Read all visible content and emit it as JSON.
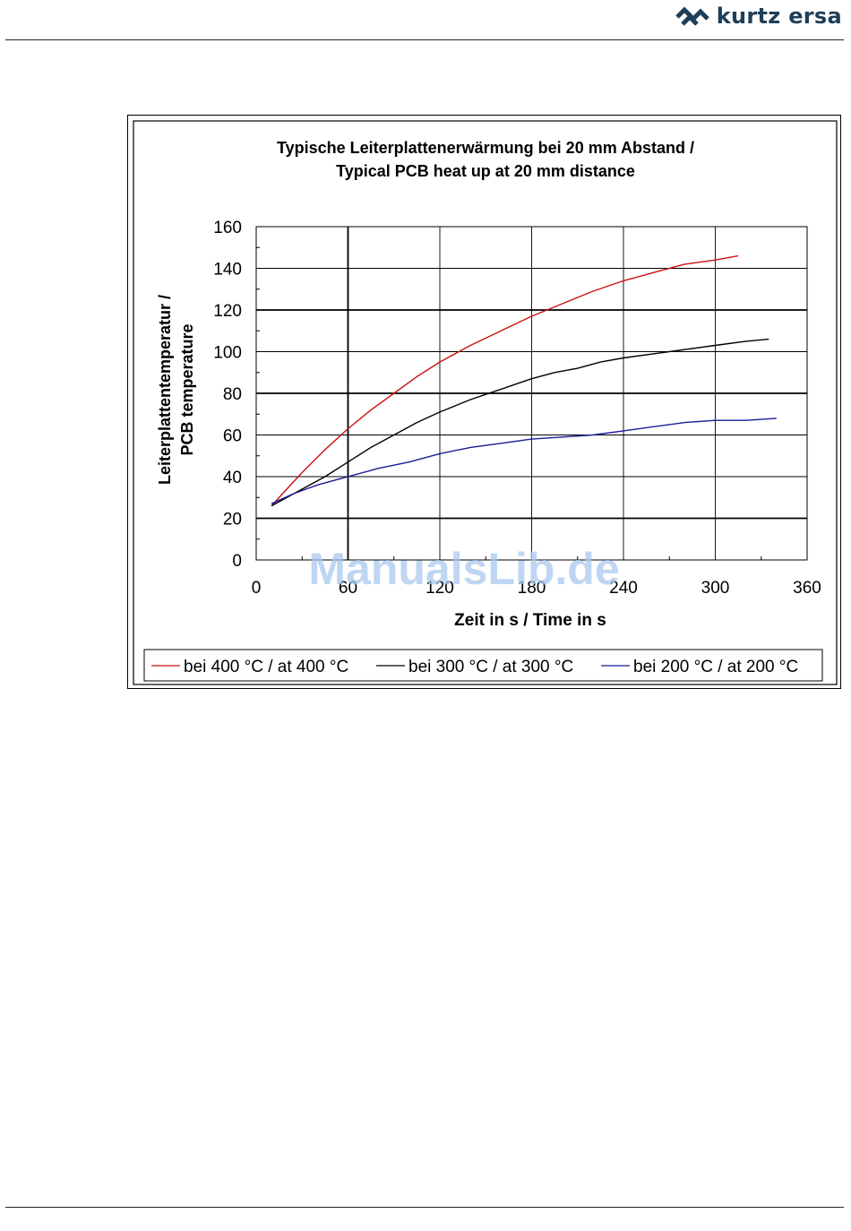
{
  "header": {
    "logo_text": "kurtz ersa",
    "logo_icon": "kurtz-ersa-logo-mark",
    "brand_color": "#1f3e57"
  },
  "chart_data": {
    "type": "line",
    "title_line1": "Typische Leiterplattenerwärmung bei 20 mm Abstand /",
    "title_line2": "Typical PCB heat up at 20 mm distance",
    "xlabel": "Zeit in s / Time in s",
    "ylabel_line1": "Leiterplattentemperatur /",
    "ylabel_line2": "PCB temperature",
    "xlim": [
      0,
      360
    ],
    "ylim": [
      0,
      160
    ],
    "x_ticks": [
      "0",
      "60",
      "120",
      "180",
      "240",
      "300",
      "360"
    ],
    "y_ticks": [
      "0",
      "20",
      "40",
      "60",
      "80",
      "100",
      "120",
      "140",
      "160"
    ],
    "grid": true,
    "legend_position": "bottom",
    "watermark": "ManualsLib.de",
    "series": [
      {
        "name": "bei 400 °C / at 400 °C",
        "color": "#cc1111",
        "points": [
          [
            10,
            26
          ],
          [
            20,
            34
          ],
          [
            30,
            42
          ],
          [
            45,
            53
          ],
          [
            60,
            63
          ],
          [
            75,
            72
          ],
          [
            90,
            80
          ],
          [
            105,
            88
          ],
          [
            120,
            95
          ],
          [
            140,
            103
          ],
          [
            160,
            110
          ],
          [
            180,
            117
          ],
          [
            200,
            123
          ],
          [
            220,
            129
          ],
          [
            240,
            134
          ],
          [
            260,
            138
          ],
          [
            280,
            142
          ],
          [
            300,
            144
          ],
          [
            315,
            146
          ]
        ]
      },
      {
        "name": "bei 300 °C / at 300 °C",
        "color": "#000000",
        "points": [
          [
            10,
            26
          ],
          [
            25,
            32
          ],
          [
            45,
            40
          ],
          [
            60,
            47
          ],
          [
            75,
            54
          ],
          [
            90,
            60
          ],
          [
            105,
            66
          ],
          [
            120,
            71
          ],
          [
            140,
            77
          ],
          [
            160,
            82
          ],
          [
            180,
            87
          ],
          [
            195,
            90
          ],
          [
            210,
            92
          ],
          [
            225,
            95
          ],
          [
            240,
            97
          ],
          [
            260,
            99
          ],
          [
            280,
            101
          ],
          [
            300,
            103
          ],
          [
            320,
            105
          ],
          [
            335,
            106
          ]
        ]
      },
      {
        "name": "bei 200 °C / at 200 °C",
        "color": "#1a1a99",
        "points": [
          [
            10,
            27
          ],
          [
            25,
            32
          ],
          [
            40,
            36
          ],
          [
            60,
            40
          ],
          [
            80,
            44
          ],
          [
            100,
            47
          ],
          [
            120,
            51
          ],
          [
            140,
            54
          ],
          [
            160,
            56
          ],
          [
            180,
            58
          ],
          [
            200,
            59
          ],
          [
            220,
            60
          ],
          [
            240,
            62
          ],
          [
            260,
            64
          ],
          [
            280,
            66
          ],
          [
            300,
            67
          ],
          [
            320,
            67
          ],
          [
            340,
            68
          ]
        ]
      }
    ]
  }
}
